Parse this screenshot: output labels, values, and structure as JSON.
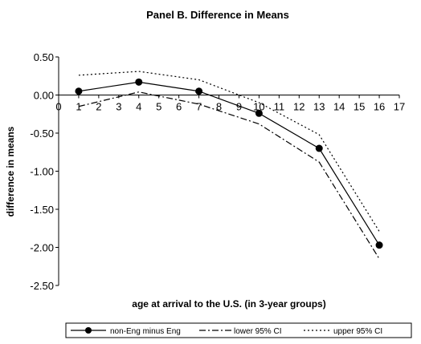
{
  "chart_data": {
    "type": "line",
    "title": "Panel B.  Difference in Means",
    "xlabel": "age at arrival to the U.S. (in 3-year groups)",
    "ylabel": "difference in means",
    "xlim": [
      0,
      17
    ],
    "ylim": [
      -2.5,
      0.5
    ],
    "xticks": [
      0,
      1,
      2,
      3,
      4,
      5,
      6,
      7,
      8,
      9,
      10,
      11,
      12,
      13,
      14,
      15,
      16,
      17
    ],
    "yticks": [
      0.5,
      0.0,
      -0.5,
      -1.0,
      -1.5,
      -2.0,
      -2.5
    ],
    "ytick_labels": [
      "0.50",
      "0.00",
      "-0.50",
      "-1.00",
      "-1.50",
      "-2.00",
      "-2.50"
    ],
    "grid": false,
    "legend_position": "bottom",
    "series": [
      {
        "name": "non-Eng minus Eng",
        "style": "solid-marker",
        "color": "#000000",
        "x": [
          1,
          4,
          7,
          10,
          13,
          16
        ],
        "y": [
          0.05,
          0.17,
          0.05,
          -0.24,
          -0.7,
          -1.97
        ]
      },
      {
        "name": "lower 95% CI",
        "style": "dash-dot",
        "color": "#000000",
        "x": [
          1,
          4,
          7,
          10,
          13,
          16
        ],
        "y": [
          -0.15,
          0.04,
          -0.12,
          -0.38,
          -0.88,
          -2.15
        ]
      },
      {
        "name": "upper 95% CI",
        "style": "dotted",
        "color": "#000000",
        "x": [
          1,
          4,
          7,
          10,
          13,
          16
        ],
        "y": [
          0.26,
          0.31,
          0.2,
          -0.1,
          -0.52,
          -1.79
        ]
      }
    ]
  }
}
